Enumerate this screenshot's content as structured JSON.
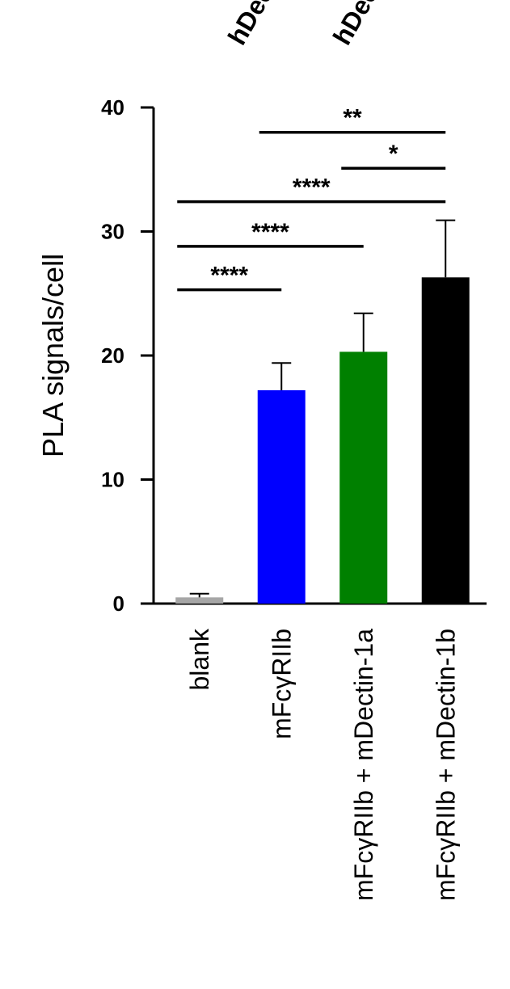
{
  "top_fragments": [
    "hDec",
    "hDec"
  ],
  "chart_data": {
    "type": "bar",
    "title": "",
    "xlabel": "",
    "ylabel": "PLA signals/cell",
    "ylim": [
      0,
      40
    ],
    "yticks": [
      0,
      10,
      20,
      30,
      40
    ],
    "categories": [
      "blank",
      "mFcγRIIb",
      "mFcγRIIb + mDectin-1a",
      "mFcγRIIb + mDectin-1b"
    ],
    "values": [
      0.5,
      17.2,
      20.3,
      26.3
    ],
    "errors": [
      0.3,
      2.2,
      3.1,
      4.6
    ],
    "colors": [
      "#a6a6a6",
      "#0000ff",
      "#008000",
      "#000000"
    ],
    "significance": [
      {
        "from": 0,
        "to": 1,
        "y": 25.3,
        "label": "****"
      },
      {
        "from": 0,
        "to": 2,
        "y": 28.8,
        "label": "****"
      },
      {
        "from": 0,
        "to": 3,
        "y": 32.4,
        "label": "****"
      },
      {
        "from": 2,
        "to": 3,
        "y": 35.1,
        "label": "*"
      },
      {
        "from": 1,
        "to": 3,
        "y": 38.0,
        "label": "**"
      }
    ]
  }
}
